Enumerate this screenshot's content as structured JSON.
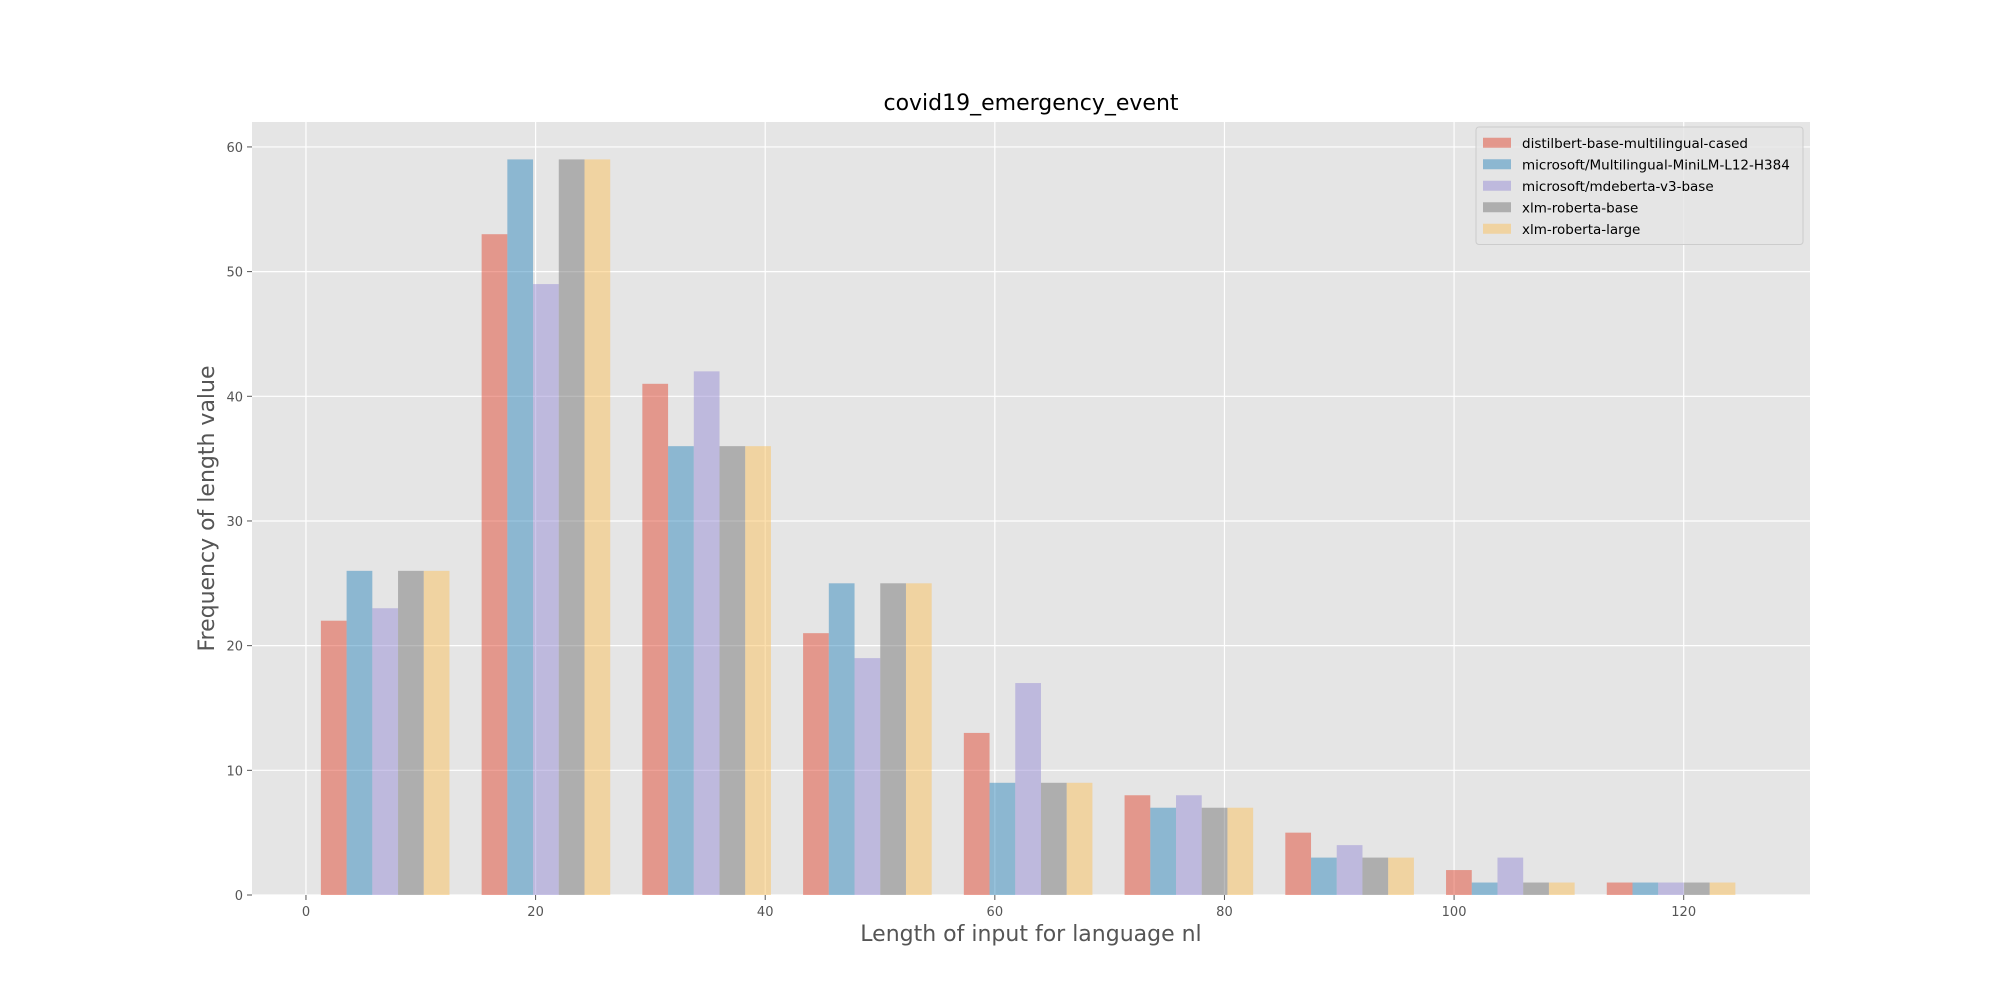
{
  "chart_data": {
    "type": "bar",
    "title": "covid19_emergency_event",
    "xlabel": "Length of input for language nl",
    "ylabel": "Frequency of length value",
    "xlim": [
      -4.7,
      131
    ],
    "ylim": [
      0,
      62
    ],
    "xticks": [
      0,
      20,
      40,
      60,
      80,
      100,
      120
    ],
    "yticks": [
      0,
      10,
      20,
      30,
      40,
      50,
      60
    ],
    "grid": true,
    "legend_position": "top-right",
    "bin_starts": [
      1.3,
      15.3,
      29.3,
      43.3,
      57.3,
      71.3,
      85.3,
      99.3,
      113.3
    ],
    "bar_width": 2.24,
    "series": [
      {
        "name": "distilbert-base-multilingual-cased",
        "color": "#E24A33",
        "values": [
          22,
          53,
          41,
          21,
          13,
          8,
          5,
          2,
          1
        ]
      },
      {
        "name": "microsoft/Multilingual-MiniLM-L12-H384",
        "color": "#348ABD",
        "values": [
          26,
          59,
          36,
          25,
          9,
          7,
          3,
          1,
          1
        ]
      },
      {
        "name": "microsoft/mdeberta-v3-base",
        "color": "#988ED5",
        "values": [
          23,
          49,
          42,
          19,
          17,
          8,
          4,
          3,
          1
        ]
      },
      {
        "name": "xlm-roberta-base",
        "color": "#777777",
        "values": [
          26,
          59,
          36,
          25,
          9,
          7,
          3,
          1,
          1
        ]
      },
      {
        "name": "xlm-roberta-large",
        "color": "#FBC15E",
        "values": [
          26,
          59,
          36,
          25,
          9,
          7,
          3,
          1,
          1
        ]
      }
    ],
    "colors": {
      "plot_background": "#E5E5E5",
      "grid": "#FFFFFF"
    }
  }
}
